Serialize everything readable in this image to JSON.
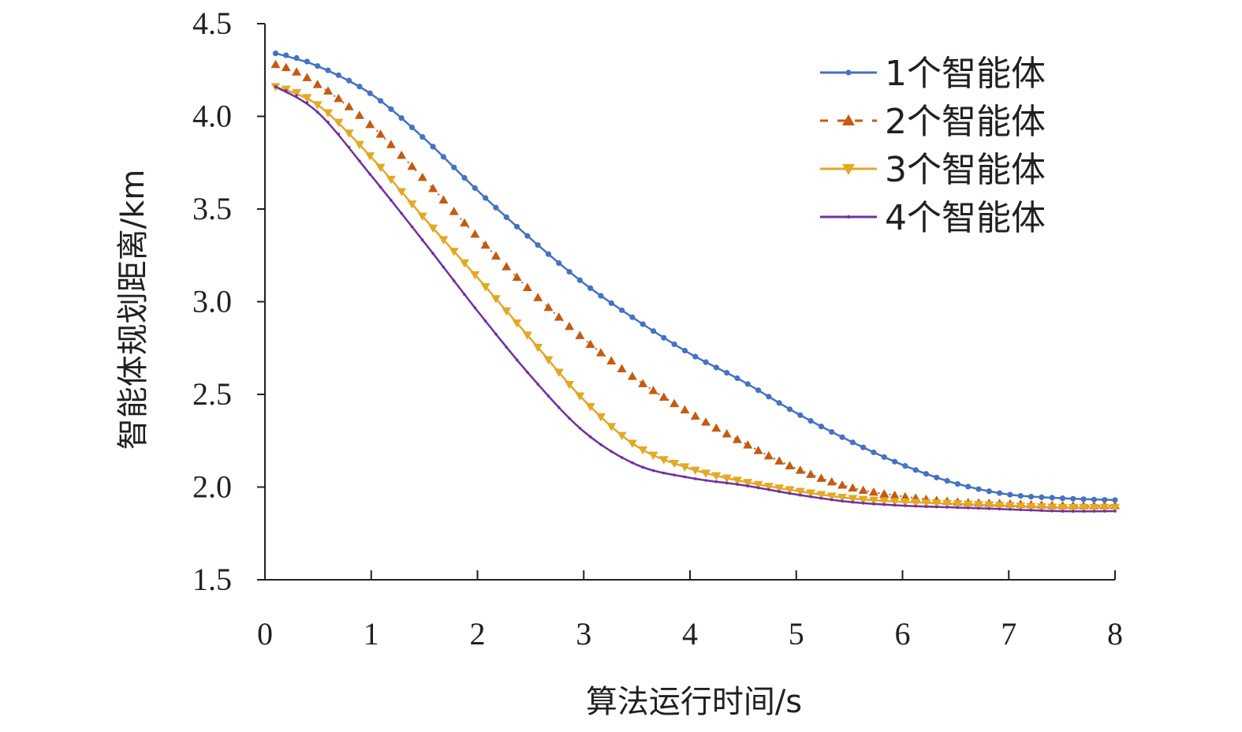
{
  "chart_data": {
    "type": "line",
    "title": "",
    "xlabel": "算法运行时间/s",
    "ylabel": "智能体规划距离/km",
    "xlim": [
      0,
      8
    ],
    "ylim": [
      1.5,
      4.5
    ],
    "x_ticks": [
      0,
      1,
      2,
      3,
      4,
      5,
      6,
      7,
      8
    ],
    "x_tick_labels": [
      "0",
      "1",
      "2",
      "3",
      "4",
      "5",
      "6",
      "7",
      "8"
    ],
    "y_ticks": [
      1.5,
      2.0,
      2.5,
      3.0,
      3.5,
      4.0,
      4.5
    ],
    "y_tick_labels": [
      "1.5",
      "2.0",
      "2.5",
      "3.0",
      "3.5",
      "4.0",
      "4.5"
    ],
    "grid": false,
    "legend_position": "top-right",
    "series": [
      {
        "name": "1个智能体",
        "color": "#4472c4",
        "marker": "circle",
        "line": "solid",
        "x": [
          0.1,
          0.5,
          1.0,
          1.5,
          2.0,
          2.5,
          3.0,
          3.5,
          4.0,
          4.5,
          5.0,
          5.5,
          6.0,
          6.5,
          7.0,
          7.5,
          8.0
        ],
        "y": [
          4.34,
          4.27,
          4.12,
          3.88,
          3.6,
          3.34,
          3.1,
          2.9,
          2.72,
          2.57,
          2.4,
          2.25,
          2.12,
          2.02,
          1.96,
          1.94,
          1.93
        ]
      },
      {
        "name": "2个智能体",
        "color": "#c55a11",
        "marker": "triangle-up",
        "line": "dashed",
        "x": [
          0.1,
          0.5,
          1.0,
          1.5,
          2.0,
          2.5,
          3.0,
          3.5,
          4.0,
          4.5,
          5.0,
          5.5,
          6.0,
          6.5,
          7.0,
          7.5,
          8.0
        ],
        "y": [
          4.28,
          4.17,
          3.95,
          3.66,
          3.35,
          3.06,
          2.8,
          2.58,
          2.4,
          2.24,
          2.1,
          2.0,
          1.95,
          1.92,
          1.91,
          1.9,
          1.9
        ]
      },
      {
        "name": "3个智能体",
        "color": "#e3a825",
        "marker": "triangle-down",
        "line": "solid",
        "x": [
          0.1,
          0.5,
          1.0,
          1.5,
          2.0,
          2.5,
          3.0,
          3.5,
          4.0,
          4.5,
          5.0,
          5.5,
          6.0,
          6.5,
          7.0,
          7.5,
          8.0
        ],
        "y": [
          4.16,
          4.06,
          3.78,
          3.45,
          3.13,
          2.8,
          2.47,
          2.22,
          2.1,
          2.03,
          1.98,
          1.94,
          1.92,
          1.91,
          1.9,
          1.89,
          1.89
        ]
      },
      {
        "name": "4个智能体",
        "color": "#7030a0",
        "marker": "dot",
        "line": "solid",
        "x": [
          0.1,
          0.5,
          1.0,
          1.5,
          2.0,
          2.5,
          3.0,
          3.5,
          4.0,
          4.5,
          5.0,
          5.5,
          6.0,
          6.5,
          7.0,
          7.5,
          8.0
        ],
        "y": [
          4.16,
          4.02,
          3.68,
          3.32,
          2.95,
          2.6,
          2.3,
          2.12,
          2.05,
          2.01,
          1.96,
          1.92,
          1.9,
          1.89,
          1.88,
          1.87,
          1.87
        ]
      }
    ]
  }
}
